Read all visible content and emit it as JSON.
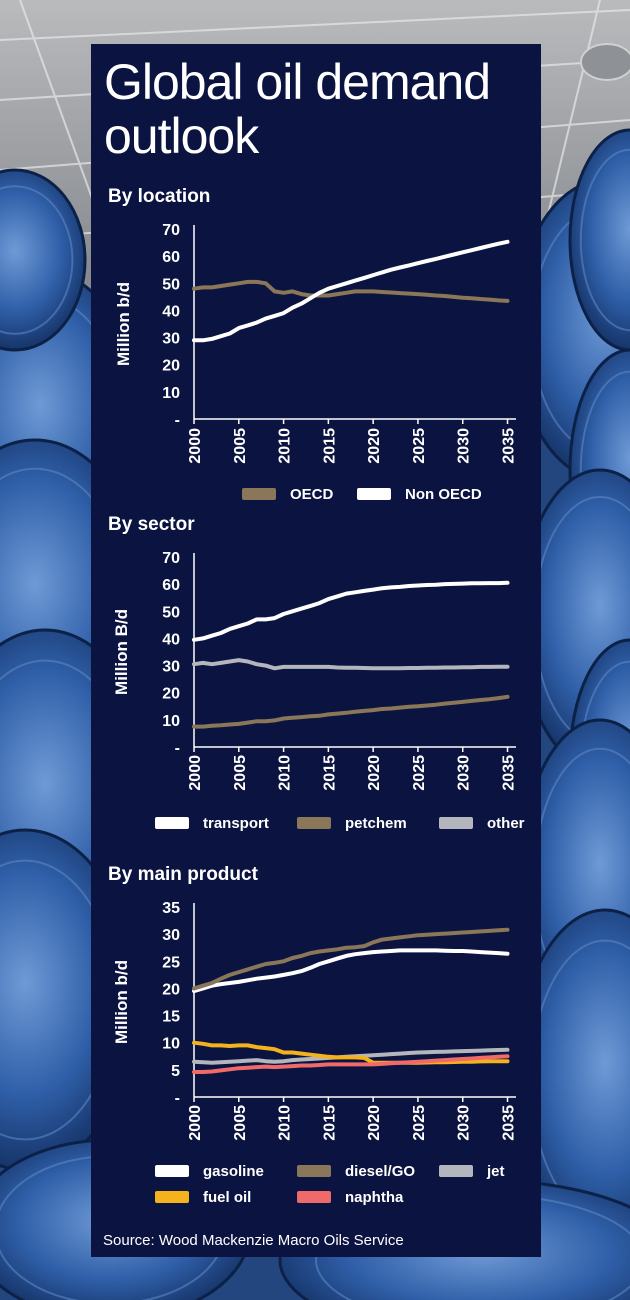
{
  "title_line1": "Global oil demand",
  "title_line2": "outlook",
  "source": "Source: Wood Mackenzie Macro Oils Service",
  "colors": {
    "panel": "#0b1340",
    "oecd": "#8a7658",
    "non_oecd": "#ffffff",
    "transport": "#ffffff",
    "petchem": "#8a7658",
    "other": "#b4b6bd",
    "gasoline": "#ffffff",
    "diesel": "#8a7658",
    "jet": "#b4b6bd",
    "fuel_oil": "#f4b21c",
    "naphtha": "#f06a6a"
  },
  "chart_data": [
    {
      "type": "line",
      "title": "By location",
      "ylabel": "Million b/d",
      "ylim": [
        0,
        70
      ],
      "yticks": [
        "-",
        "10",
        "20",
        "30",
        "40",
        "50",
        "60",
        "70"
      ],
      "xticks": [
        "2000",
        "2005",
        "2010",
        "2015",
        "2020",
        "2025",
        "2030",
        "2035"
      ],
      "x": [
        2000,
        2001,
        2002,
        2003,
        2004,
        2005,
        2006,
        2007,
        2008,
        2009,
        2010,
        2011,
        2012,
        2013,
        2014,
        2015,
        2016,
        2017,
        2018,
        2019,
        2020,
        2021,
        2022,
        2023,
        2024,
        2025,
        2026,
        2027,
        2028,
        2029,
        2030,
        2031,
        2032,
        2033,
        2034,
        2035
      ],
      "series": [
        {
          "name": "OECD",
          "color": "#8a7658",
          "values": [
            48,
            48.5,
            48.5,
            49,
            49.5,
            50,
            50.5,
            50.5,
            50,
            47,
            46.5,
            47,
            46,
            45.5,
            45.5,
            45.5,
            46,
            46.5,
            47,
            47,
            47,
            46.8,
            46.6,
            46.4,
            46.2,
            46,
            45.8,
            45.5,
            45.3,
            45,
            44.7,
            44.5,
            44.2,
            44,
            43.7,
            43.5
          ]
        },
        {
          "name": "Non OECD",
          "color": "#ffffff",
          "values": [
            29,
            29,
            29.5,
            30.5,
            31.5,
            33.5,
            34.5,
            35.5,
            37,
            38,
            39,
            41,
            42.5,
            44.5,
            46.5,
            48,
            49,
            50,
            51,
            52,
            53,
            54,
            55,
            55.8,
            56.6,
            57.4,
            58.2,
            59,
            59.8,
            60.6,
            61.4,
            62.2,
            63,
            63.8,
            64.6,
            65.3
          ]
        }
      ]
    },
    {
      "type": "line",
      "title": "By sector",
      "ylabel": "Million B/d",
      "ylim": [
        0,
        70
      ],
      "yticks": [
        "-",
        "10",
        "20",
        "30",
        "40",
        "50",
        "60",
        "70"
      ],
      "xticks": [
        "2000",
        "2005",
        "2010",
        "2015",
        "2020",
        "2025",
        "2030",
        "2035"
      ],
      "x": [
        2000,
        2001,
        2002,
        2003,
        2004,
        2005,
        2006,
        2007,
        2008,
        2009,
        2010,
        2011,
        2012,
        2013,
        2014,
        2015,
        2016,
        2017,
        2018,
        2019,
        2020,
        2021,
        2022,
        2023,
        2024,
        2025,
        2026,
        2027,
        2028,
        2029,
        2030,
        2031,
        2032,
        2033,
        2034,
        2035
      ],
      "series": [
        {
          "name": "transport",
          "color": "#ffffff",
          "values": [
            39.5,
            40,
            41,
            42,
            43.5,
            44.5,
            45.5,
            47,
            47,
            47.5,
            49,
            50,
            51,
            52,
            53,
            54.5,
            55.5,
            56.5,
            57,
            57.5,
            58,
            58.5,
            58.8,
            59,
            59.3,
            59.5,
            59.7,
            59.8,
            60,
            60.1,
            60.2,
            60.3,
            60.3,
            60.4,
            60.4,
            60.5
          ]
        },
        {
          "name": "petchem",
          "color": "#8a7658",
          "values": [
            7.5,
            7.5,
            7.8,
            8,
            8.3,
            8.5,
            9,
            9.5,
            9.5,
            9.8,
            10.5,
            10.8,
            11,
            11.3,
            11.5,
            12,
            12.3,
            12.6,
            13,
            13.3,
            13.6,
            14,
            14.2,
            14.5,
            14.8,
            15,
            15.3,
            15.6,
            16,
            16.3,
            16.6,
            17,
            17.3,
            17.6,
            18,
            18.5
          ]
        },
        {
          "name": "other",
          "color": "#b4b6bd",
          "values": [
            30.5,
            31,
            30.5,
            31,
            31.5,
            32,
            31.5,
            30.5,
            30,
            29,
            29.5,
            29.5,
            29.5,
            29.5,
            29.5,
            29.5,
            29.3,
            29.2,
            29.2,
            29.1,
            29,
            29,
            29,
            29,
            29.1,
            29.1,
            29.2,
            29.2,
            29.3,
            29.3,
            29.4,
            29.4,
            29.5,
            29.5,
            29.6,
            29.6
          ]
        }
      ]
    },
    {
      "type": "line",
      "title": "By main product",
      "ylabel": "Million b/d",
      "ylim": [
        0,
        35
      ],
      "yticks": [
        "-",
        "5",
        "10",
        "15",
        "20",
        "25",
        "30",
        "35"
      ],
      "xticks": [
        "2000",
        "2005",
        "2010",
        "2015",
        "2020",
        "2025",
        "2030",
        "2035"
      ],
      "x": [
        2000,
        2001,
        2002,
        2003,
        2004,
        2005,
        2006,
        2007,
        2008,
        2009,
        2010,
        2011,
        2012,
        2013,
        2014,
        2015,
        2016,
        2017,
        2018,
        2019,
        2020,
        2021,
        2022,
        2023,
        2024,
        2025,
        2026,
        2027,
        2028,
        2029,
        2030,
        2031,
        2032,
        2033,
        2034,
        2035
      ],
      "series": [
        {
          "name": "jet",
          "color": "#b4b6bd",
          "values": [
            6.5,
            6.4,
            6.3,
            6.4,
            6.5,
            6.6,
            6.7,
            6.8,
            6.6,
            6.5,
            6.6,
            6.8,
            6.9,
            7,
            7.1,
            7.2,
            7.3,
            7.4,
            7.5,
            7.6,
            7.7,
            7.8,
            7.9,
            8,
            8.1,
            8.2,
            8.25,
            8.3,
            8.35,
            8.4,
            8.45,
            8.5,
            8.55,
            8.6,
            8.65,
            8.7
          ]
        },
        {
          "name": "fuel oil",
          "color": "#f4b21c",
          "values": [
            10,
            9.8,
            9.5,
            9.5,
            9.4,
            9.5,
            9.5,
            9.2,
            9,
            8.8,
            8.2,
            8.2,
            8,
            7.8,
            7.6,
            7.4,
            7.3,
            7.3,
            7.3,
            7.2,
            6.3,
            6.3,
            6.3,
            6.3,
            6.3,
            6.3,
            6.35,
            6.4,
            6.4,
            6.45,
            6.5,
            6.5,
            6.55,
            6.6,
            6.6,
            6.6
          ]
        },
        {
          "name": "naphtha",
          "color": "#f06a6a",
          "values": [
            4.6,
            4.6,
            4.7,
            4.9,
            5.1,
            5.3,
            5.4,
            5.5,
            5.6,
            5.5,
            5.6,
            5.7,
            5.8,
            5.8,
            5.9,
            6,
            6,
            6,
            6,
            6,
            6,
            6.1,
            6.2,
            6.3,
            6.4,
            6.5,
            6.6,
            6.7,
            6.8,
            6.9,
            7,
            7.1,
            7.2,
            7.3,
            7.4,
            7.5
          ]
        },
        {
          "name": "gasoline",
          "color": "#ffffff",
          "values": [
            19.5,
            20,
            20.5,
            20.8,
            21,
            21.2,
            21.5,
            21.8,
            22,
            22.2,
            22.5,
            22.8,
            23.2,
            23.8,
            24.5,
            25,
            25.5,
            26,
            26.3,
            26.5,
            26.7,
            26.8,
            26.9,
            27,
            27,
            27,
            27,
            27,
            26.95,
            26.9,
            26.9,
            26.8,
            26.7,
            26.6,
            26.5,
            26.4
          ]
        },
        {
          "name": "diesel/GO",
          "color": "#8a7658",
          "values": [
            20,
            20.5,
            21,
            21.8,
            22.5,
            23,
            23.5,
            24,
            24.5,
            24.7,
            25,
            25.6,
            26,
            26.5,
            26.8,
            27,
            27.2,
            27.5,
            27.6,
            27.8,
            28.5,
            29,
            29.2,
            29.4,
            29.6,
            29.8,
            29.9,
            30,
            30.1,
            30.2,
            30.3,
            30.4,
            30.5,
            30.6,
            30.7,
            30.8
          ]
        }
      ]
    }
  ],
  "legends": [
    [
      {
        "label": "OECD",
        "color": "#8a7658"
      },
      {
        "label": "Non OECD",
        "color": "#ffffff"
      }
    ],
    [
      {
        "label": "transport",
        "color": "#ffffff"
      },
      {
        "label": "petchem",
        "color": "#8a7658"
      },
      {
        "label": "other",
        "color": "#b4b6bd"
      }
    ],
    [
      {
        "label": "gasoline",
        "color": "#ffffff"
      },
      {
        "label": "diesel/GO",
        "color": "#8a7658"
      },
      {
        "label": "jet",
        "color": "#b4b6bd"
      },
      {
        "label": "fuel oil",
        "color": "#f4b21c"
      },
      {
        "label": "naphtha",
        "color": "#f06a6a"
      }
    ]
  ]
}
